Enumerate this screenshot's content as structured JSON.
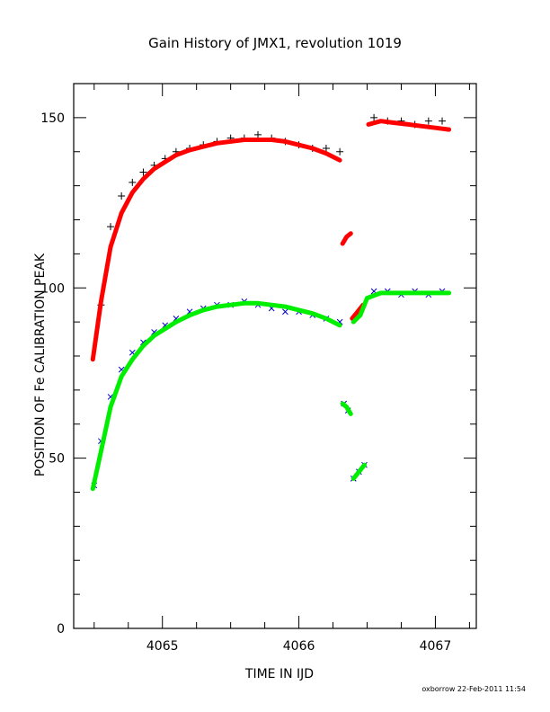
{
  "chart_data": {
    "type": "scatter",
    "title": "Gain History of JMX1, revolution 1019",
    "xlabel": "TIME IN IJD",
    "ylabel": "POSITION OF Fe CALIBRATION PEAK",
    "xlim": [
      4064.35,
      4067.3
    ],
    "ylim": [
      0,
      160
    ],
    "x_ticks": [
      4065,
      4066,
      4067
    ],
    "x_tick_labels": [
      "4065",
      "4066",
      "4067"
    ],
    "y_ticks": [
      0,
      50,
      100,
      150
    ],
    "y_tick_labels": [
      "0",
      "50",
      "100",
      "150"
    ],
    "grid": false,
    "legend": "none",
    "footer": "oxborrow 22-Feb-2011 11:54",
    "series": [
      {
        "marker": "plus",
        "color": "#000000",
        "x": [
          4064.55,
          4064.62,
          4064.7,
          4064.78,
          4064.86,
          4064.94,
          4065.02,
          4065.1,
          4065.2,
          4065.3,
          4065.4,
          4065.5,
          4065.6,
          4065.7,
          4065.8,
          4065.9,
          4066.0,
          4066.1,
          4066.2,
          4066.3,
          4066.55,
          4066.65,
          4066.75,
          4066.85,
          4066.95,
          4067.05
        ],
        "y": [
          95,
          118,
          127,
          131,
          134,
          136,
          138,
          140,
          141,
          142,
          143,
          144,
          144,
          145,
          144,
          143,
          142,
          141,
          141,
          140,
          150,
          149,
          149,
          148,
          149,
          149
        ]
      },
      {
        "marker": "line",
        "color": "#ff0000",
        "x": [
          4064.49,
          4064.55,
          4064.62,
          4064.7,
          4064.78,
          4064.86,
          4064.94,
          4065.02,
          4065.1,
          4065.2,
          4065.3,
          4065.4,
          4065.5,
          4065.6,
          4065.7,
          4065.8,
          4065.9,
          4066.0,
          4066.1,
          4066.2,
          4066.3
        ],
        "y": [
          79,
          96,
          112,
          122,
          128,
          132,
          135,
          137,
          139,
          140.5,
          141.5,
          142.5,
          143,
          143.5,
          143.5,
          143.5,
          143,
          142,
          141,
          139.5,
          137.5
        ]
      },
      {
        "marker": "line",
        "color": "#ff0000",
        "x": [
          4066.32,
          4066.35,
          4066.38
        ],
        "y": [
          113,
          115,
          116
        ]
      },
      {
        "marker": "line",
        "color": "#ff0000",
        "x": [
          4066.39,
          4066.43,
          4066.47
        ],
        "y": [
          91,
          93,
          95
        ]
      },
      {
        "marker": "line",
        "color": "#ff0000",
        "x": [
          4066.51,
          4066.6,
          4066.7,
          4066.8,
          4066.9,
          4067.0,
          4067.1
        ],
        "y": [
          148,
          149,
          148.5,
          148,
          147.5,
          147,
          146.5
        ]
      },
      {
        "marker": "cross",
        "color": "#0000cc",
        "x": [
          4064.5,
          4064.55,
          4064.62,
          4064.7,
          4064.78,
          4064.86,
          4064.94,
          4065.02,
          4065.1,
          4065.2,
          4065.3,
          4065.4,
          4065.5,
          4065.6,
          4065.7,
          4065.8,
          4065.9,
          4066.0,
          4066.1,
          4066.2,
          4066.3,
          4066.33,
          4066.36,
          4066.4,
          4066.44,
          4066.48,
          4066.55,
          4066.65,
          4066.75,
          4066.85,
          4066.95,
          4067.05
        ],
        "y": [
          42,
          55,
          68,
          76,
          81,
          84,
          87,
          89,
          91,
          93,
          94,
          95,
          95,
          96,
          95,
          94,
          93,
          93,
          92,
          91,
          90,
          66,
          64,
          44,
          46,
          48,
          99,
          99,
          98,
          99,
          98,
          99
        ]
      },
      {
        "marker": "line",
        "color": "#00ee00",
        "x": [
          4064.49,
          4064.55,
          4064.62,
          4064.7,
          4064.78,
          4064.86,
          4064.94,
          4065.02,
          4065.1,
          4065.2,
          4065.3,
          4065.4,
          4065.5,
          4065.6,
          4065.7,
          4065.8,
          4065.9,
          4066.0,
          4066.1,
          4066.2,
          4066.3
        ],
        "y": [
          41,
          52,
          65,
          74,
          79,
          83,
          86,
          88,
          90,
          92,
          93.5,
          94.5,
          95,
          95.5,
          95.5,
          95,
          94.5,
          93.5,
          92.5,
          91,
          89
        ]
      },
      {
        "marker": "line",
        "color": "#00ee00",
        "x": [
          4066.32,
          4066.35,
          4066.38
        ],
        "y": [
          66,
          65,
          63
        ]
      },
      {
        "marker": "line",
        "color": "#00ee00",
        "x": [
          4066.4,
          4066.44,
          4066.48
        ],
        "y": [
          44,
          46,
          48
        ]
      },
      {
        "marker": "line",
        "color": "#00ee00",
        "x": [
          4066.4,
          4066.45,
          4066.5,
          4066.6,
          4066.7,
          4066.8,
          4066.9,
          4067.0,
          4067.1
        ],
        "y": [
          90,
          92,
          97,
          98.5,
          98.5,
          98.5,
          98.5,
          98.5,
          98.5
        ]
      }
    ]
  }
}
